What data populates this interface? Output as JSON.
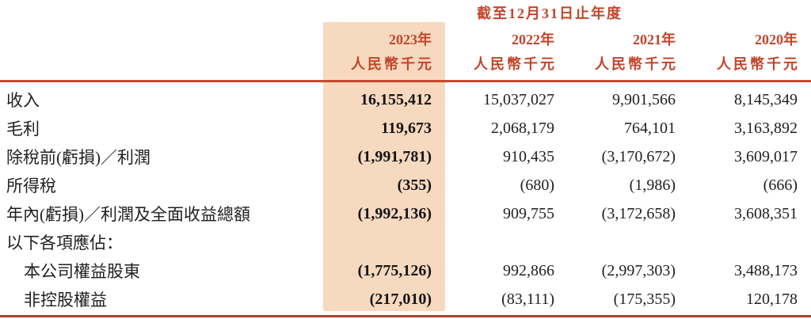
{
  "colors": {
    "accent": "#c2462c",
    "accent_line": "#c44a2c",
    "accent_line_bottom": "#a84531",
    "highlight_bg": "#f7d9bf",
    "text": "#1f1f1f",
    "page_bg": "#ffffff"
  },
  "table": {
    "period_header": "截至12月31日止年度",
    "unit_note": "人民幣千元",
    "columns": [
      {
        "year": "2023年",
        "unit": "人民幣千元",
        "highlighted": true
      },
      {
        "year": "2022年",
        "unit": "人民幣千元",
        "highlighted": false
      },
      {
        "year": "2021年",
        "unit": "人民幣千元",
        "highlighted": false
      },
      {
        "year": "2020年",
        "unit": "人民幣千元",
        "highlighted": false
      }
    ],
    "rows": [
      {
        "label": "收入",
        "values": [
          "16,155,412",
          "15,037,027",
          "9,901,566",
          "8,145,349"
        ]
      },
      {
        "label": "毛利",
        "values": [
          "119,673",
          "2,068,179",
          "764,101",
          "3,163,892"
        ]
      },
      {
        "label": "除稅前(虧損)／利潤",
        "values": [
          "(1,991,781)",
          "910,435",
          "(3,170,672)",
          "3,609,017"
        ]
      },
      {
        "label": "所得稅",
        "values": [
          "(355)",
          "(680)",
          "(1,986)",
          "(666)"
        ]
      },
      {
        "label": "年內(虧損)／利潤及全面收益總額",
        "values": [
          "(1,992,136)",
          "909,755",
          "(3,172,658)",
          "3,608,351"
        ]
      },
      {
        "label": "以下各項應佔：",
        "values": [
          "",
          "",
          "",
          ""
        ]
      },
      {
        "label": "本公司權益股東",
        "values": [
          "(1,775,126)",
          "992,866",
          "(2,997,303)",
          "3,488,173"
        ]
      },
      {
        "label": "非控股權益",
        "values": [
          "(217,010)",
          "(83,111)",
          "(175,355)",
          "120,178"
        ]
      }
    ]
  }
}
